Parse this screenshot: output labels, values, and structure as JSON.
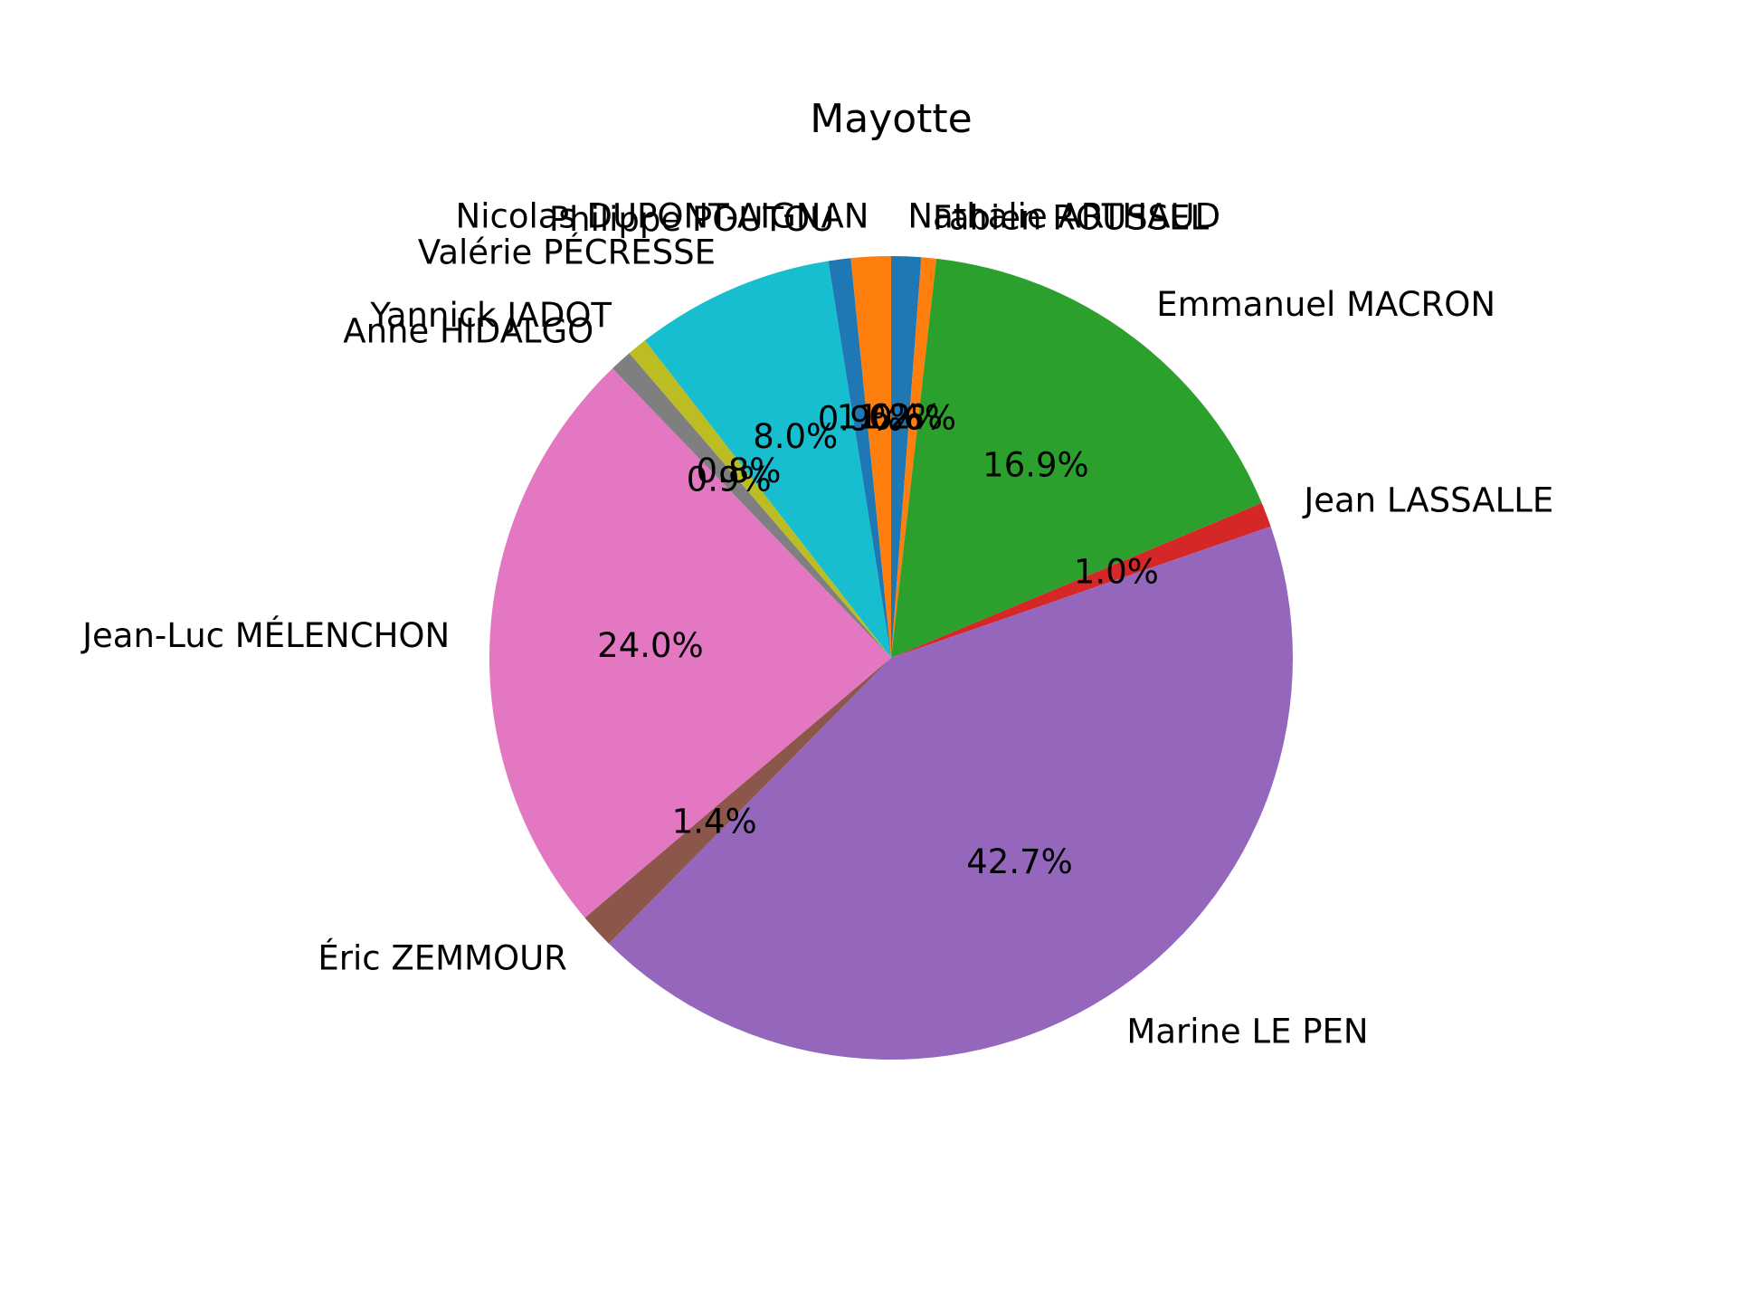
{
  "chart_data": {
    "type": "pie",
    "title": "Mayotte",
    "start_angle_deg": 90,
    "direction": "clockwise",
    "slices": [
      {
        "label": "Nathalie ARTHAUD",
        "value": 1.2,
        "pct_label": "1.2%",
        "color": "#1f77b4"
      },
      {
        "label": "Fabien ROUSSEL",
        "value": 0.6,
        "pct_label": "0.6%",
        "color": "#ff7f0e"
      },
      {
        "label": "Emmanuel MACRON",
        "value": 16.9,
        "pct_label": "16.9%",
        "color": "#2ca02c"
      },
      {
        "label": "Jean LASSALLE",
        "value": 1.0,
        "pct_label": "1.0%",
        "color": "#d62728"
      },
      {
        "label": "Marine LE PEN",
        "value": 42.7,
        "pct_label": "42.7%",
        "color": "#9467bd"
      },
      {
        "label": "Éric ZEMMOUR",
        "value": 1.4,
        "pct_label": "1.4%",
        "color": "#8c564b"
      },
      {
        "label": "Jean-Luc MÉLENCHON",
        "value": 24.0,
        "pct_label": "24.0%",
        "color": "#e377c2"
      },
      {
        "label": "Anne HIDALGO",
        "value": 0.9,
        "pct_label": "0.9%",
        "color": "#7f7f7f"
      },
      {
        "label": "Yannick JADOT",
        "value": 0.8,
        "pct_label": "0.8%",
        "color": "#bcbd22"
      },
      {
        "label": "Valérie PÉCRESSE",
        "value": 8.0,
        "pct_label": "8.0%",
        "color": "#17becf"
      },
      {
        "label": "Philippe POUTOU",
        "value": 0.9,
        "pct_label": "0.9%",
        "color": "#1f77b4"
      },
      {
        "label": "Nicolas DUPONT-AIGNAN",
        "value": 1.6,
        "pct_label": "1.6%",
        "color": "#ff7f0e"
      }
    ]
  }
}
